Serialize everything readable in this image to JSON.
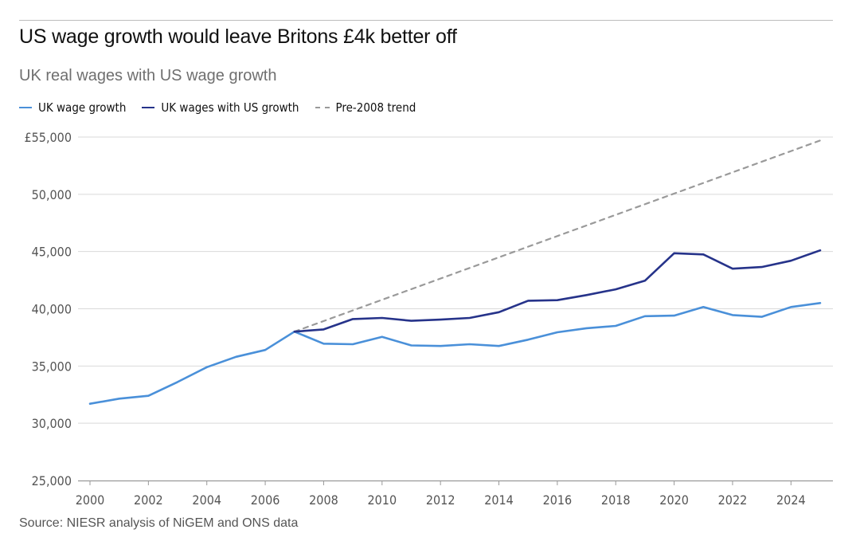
{
  "title": "US wage growth would leave Britons £4k better off",
  "subtitle": "UK real wages with US wage growth",
  "source": "Source: NIESR analysis of NiGEM and ONS data",
  "colors": {
    "uk": "#4a90d9",
    "us": "#26338a",
    "trend": "#9a9a9a",
    "grid": "#d9d9d9",
    "axis": "#999999"
  },
  "legend": [
    {
      "key": "uk",
      "label": "UK wage growth",
      "style": "solid"
    },
    {
      "key": "us",
      "label": "UK wages with US growth",
      "style": "solid"
    },
    {
      "key": "trend",
      "label": "Pre-2008 trend",
      "style": "dashed"
    }
  ],
  "chart_data": {
    "type": "line",
    "title": "US wage growth would leave Britons £4k better off",
    "subtitle": "UK real wages with US wage growth",
    "xlim": [
      2000,
      2025
    ],
    "ylim": [
      25000,
      55000
    ],
    "x_ticks": [
      2000,
      2002,
      2004,
      2006,
      2008,
      2010,
      2012,
      2014,
      2016,
      2018,
      2020,
      2022,
      2024
    ],
    "y_ticks": [
      {
        "value": 25000,
        "label": "25,000"
      },
      {
        "value": 30000,
        "label": "30,000"
      },
      {
        "value": 35000,
        "label": "35,000"
      },
      {
        "value": 40000,
        "label": "40,000"
      },
      {
        "value": 45000,
        "label": "45,000"
      },
      {
        "value": 50000,
        "label": "50,000"
      },
      {
        "value": 55000,
        "label": "£55,000"
      }
    ],
    "grid": "horizontal",
    "legend_position": "top-left",
    "series": [
      {
        "key": "uk",
        "name": "UK wage growth",
        "style": "solid",
        "x": [
          2000,
          2001,
          2002,
          2003,
          2004,
          2005,
          2006,
          2007,
          2008,
          2009,
          2010,
          2011,
          2012,
          2013,
          2014,
          2015,
          2016,
          2017,
          2018,
          2019,
          2020,
          2021,
          2022,
          2023,
          2024,
          2025
        ],
        "y": [
          31700,
          32150,
          32400,
          33600,
          34900,
          35800,
          36400,
          38000,
          36950,
          36900,
          37550,
          36800,
          36750,
          36900,
          36750,
          37300,
          37950,
          38300,
          38500,
          39350,
          39400,
          40150,
          39450,
          39300,
          40150,
          40500
        ]
      },
      {
        "key": "us",
        "name": "UK wages with US growth",
        "style": "solid",
        "x": [
          2007,
          2008,
          2009,
          2010,
          2011,
          2012,
          2013,
          2014,
          2015,
          2016,
          2017,
          2018,
          2019,
          2020,
          2021,
          2022,
          2023,
          2024,
          2025
        ],
        "y": [
          38000,
          38200,
          39100,
          39200,
          38950,
          39050,
          39200,
          39700,
          40700,
          40750,
          41200,
          41700,
          42450,
          44850,
          44750,
          43500,
          43650,
          44200,
          45100
        ]
      },
      {
        "key": "trend",
        "name": "Pre-2008 trend",
        "style": "dashed",
        "x": [
          2007,
          2025
        ],
        "y": [
          38000,
          54700
        ]
      }
    ]
  }
}
